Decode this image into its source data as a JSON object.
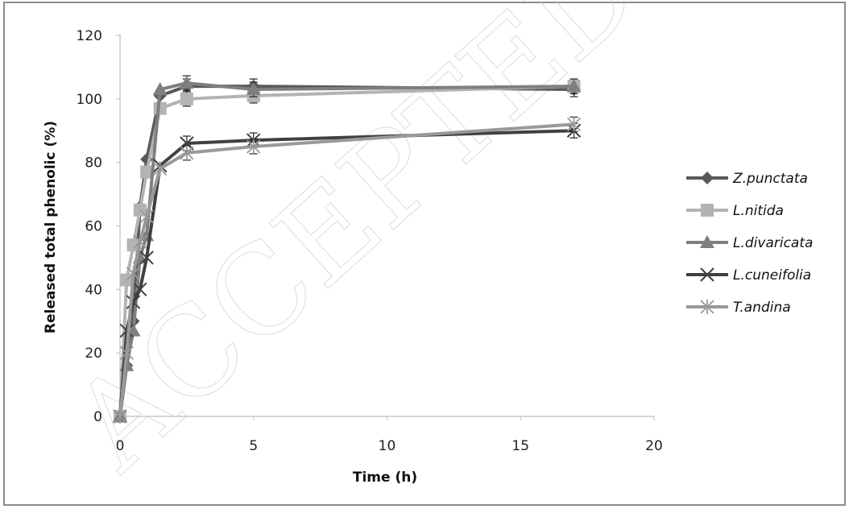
{
  "chart_data": {
    "type": "line",
    "xlabel": "Time (h)",
    "ylabel": "Released total phenolic (%)",
    "xlim": [
      0,
      20
    ],
    "ylim": [
      0,
      120
    ],
    "xticks": [
      0,
      5,
      10,
      15,
      20
    ],
    "yticks": [
      0,
      20,
      40,
      60,
      80,
      100,
      120
    ],
    "grid": false,
    "legend_position": "right",
    "watermark": "ACCEPTED MANUSCRIPT",
    "series": [
      {
        "name": "Z.punctata",
        "color": "#595959",
        "marker": "diamond",
        "x": [
          0,
          0.25,
          0.5,
          0.75,
          1,
          1.5,
          2.5,
          5,
          17
        ],
        "y": [
          0,
          16,
          30,
          66,
          81,
          101,
          104,
          104,
          103
        ]
      },
      {
        "name": "L.nitida",
        "color": "#b3b3b3",
        "marker": "square",
        "x": [
          0,
          0.25,
          0.5,
          0.75,
          1,
          1.5,
          2.5,
          5,
          17
        ],
        "y": [
          0,
          43,
          54,
          65,
          77,
          97,
          100,
          101,
          104
        ]
      },
      {
        "name": "L.divaricata",
        "color": "#7f7f7f",
        "marker": "triangle",
        "x": [
          0,
          0.25,
          0.5,
          0.75,
          1,
          1.5,
          2.5,
          5,
          17
        ],
        "y": [
          0,
          16,
          27,
          50,
          57,
          103,
          105,
          103,
          104
        ]
      },
      {
        "name": "L.cuneifolia",
        "color": "#404040",
        "marker": "x",
        "x": [
          0,
          0.25,
          0.5,
          0.75,
          1,
          1.5,
          2.5,
          5,
          17
        ],
        "y": [
          0,
          27,
          36,
          40,
          50,
          79,
          86,
          87,
          90
        ]
      },
      {
        "name": "T.andina",
        "color": "#999999",
        "marker": "star",
        "x": [
          0,
          0.25,
          0.5,
          0.75,
          1,
          1.5,
          2.5,
          5,
          17
        ],
        "y": [
          0,
          20,
          45,
          55,
          63,
          78,
          83,
          85,
          92
        ]
      }
    ]
  }
}
